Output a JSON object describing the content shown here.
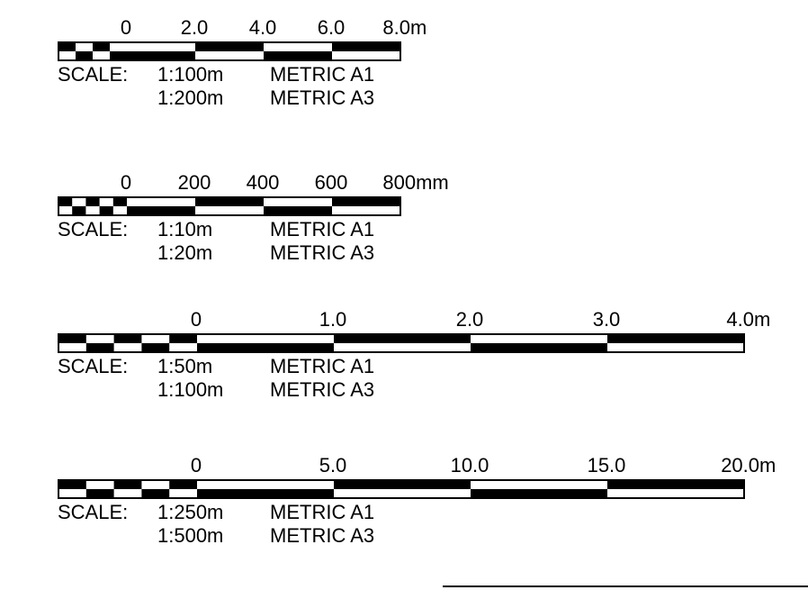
{
  "scales": [
    {
      "ticks": [
        "0",
        "2.0",
        "4.0",
        "6.0",
        "8.0m"
      ],
      "rows": [
        {
          "prefix": "SCALE:",
          "ratio": "1:100m",
          "sheet": "METRIC A1"
        },
        {
          "prefix": "",
          "ratio": "1:200m",
          "sheet": "METRIC A3"
        }
      ]
    },
    {
      "ticks": [
        "0",
        "200",
        "400",
        "600",
        "800mm"
      ],
      "rows": [
        {
          "prefix": "SCALE:",
          "ratio": "1:10m",
          "sheet": "METRIC A1"
        },
        {
          "prefix": "",
          "ratio": "1:20m",
          "sheet": "METRIC A3"
        }
      ]
    },
    {
      "ticks": [
        "0",
        "1.0",
        "2.0",
        "3.0",
        "4.0m"
      ],
      "rows": [
        {
          "prefix": "SCALE:",
          "ratio": "1:50m",
          "sheet": "METRIC A1"
        },
        {
          "prefix": "",
          "ratio": "1:100m",
          "sheet": "METRIC A3"
        }
      ]
    },
    {
      "ticks": [
        "0",
        "5.0",
        "10.0",
        "15.0",
        "20.0m"
      ],
      "rows": [
        {
          "prefix": "SCALE:",
          "ratio": "1:250m",
          "sheet": "METRIC A1"
        },
        {
          "prefix": "",
          "ratio": "1:500m",
          "sheet": "METRIC A3"
        }
      ]
    }
  ]
}
